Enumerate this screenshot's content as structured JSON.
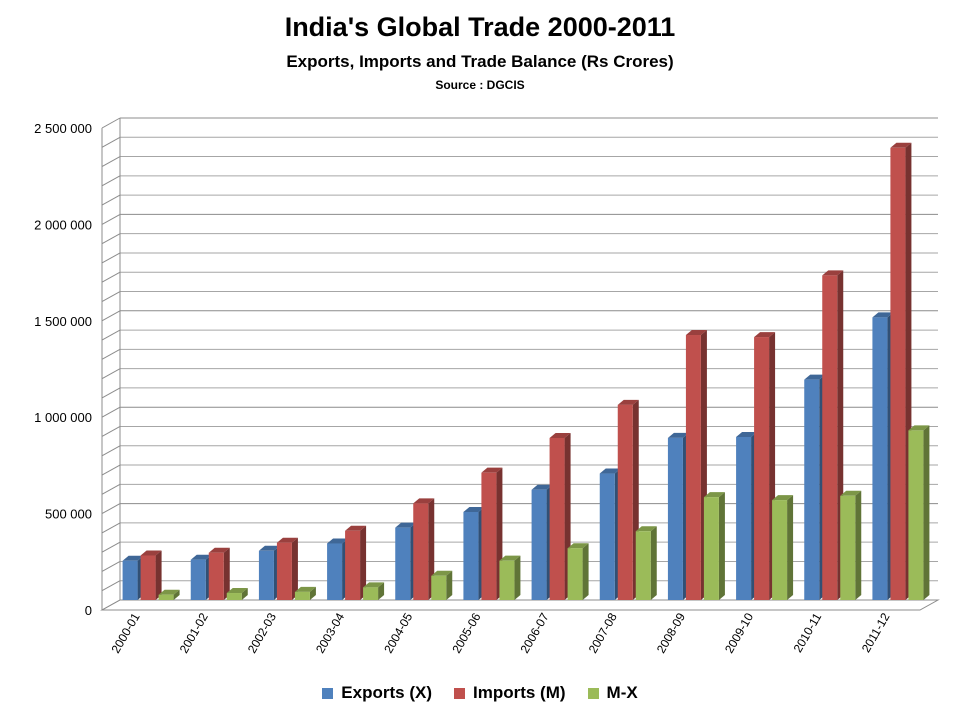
{
  "chart_data": {
    "type": "bar",
    "title": "India's Global Trade 2000-2011",
    "subtitle": "Exports, Imports and Trade Balance (Rs Crores)",
    "source": "Source : DGCIS",
    "categories": [
      "2000-01",
      "2001-02",
      "2002-03",
      "2003-04",
      "2004-05",
      "2005-06",
      "2006-07",
      "2007-08",
      "2008-09",
      "2009-10",
      "2010-11",
      "2011-12"
    ],
    "series": [
      {
        "name": "Exports (X)",
        "color": "#4F81BD",
        "values": [
          203571,
          209018,
          255137,
          293367,
          375340,
          456418,
          571779,
          655864,
          840755,
          845534,
          1142922,
          1465959
        ]
      },
      {
        "name": "Imports (M)",
        "color": "#C0504D",
        "values": [
          230873,
          245200,
          297206,
          359108,
          501065,
          660409,
          840506,
          1012312,
          1374436,
          1363736,
          1683467,
          2345463
        ]
      },
      {
        "name": "M-X",
        "color": "#9BBB59",
        "values": [
          27302,
          36182,
          42069,
          65741,
          125725,
          203991,
          268727,
          356448,
          533681,
          518202,
          540545,
          879504
        ]
      }
    ],
    "yticks": [
      0,
      500000,
      1000000,
      1500000,
      2000000,
      2500000
    ],
    "ytick_labels": [
      "0",
      "500 000",
      "1 000 000",
      "1 500 000",
      "2 000 000",
      "2 500 000"
    ],
    "ylim": [
      0,
      2500000
    ],
    "grid": true,
    "legend_position": "bottom",
    "style": "3d-clustered-column"
  }
}
